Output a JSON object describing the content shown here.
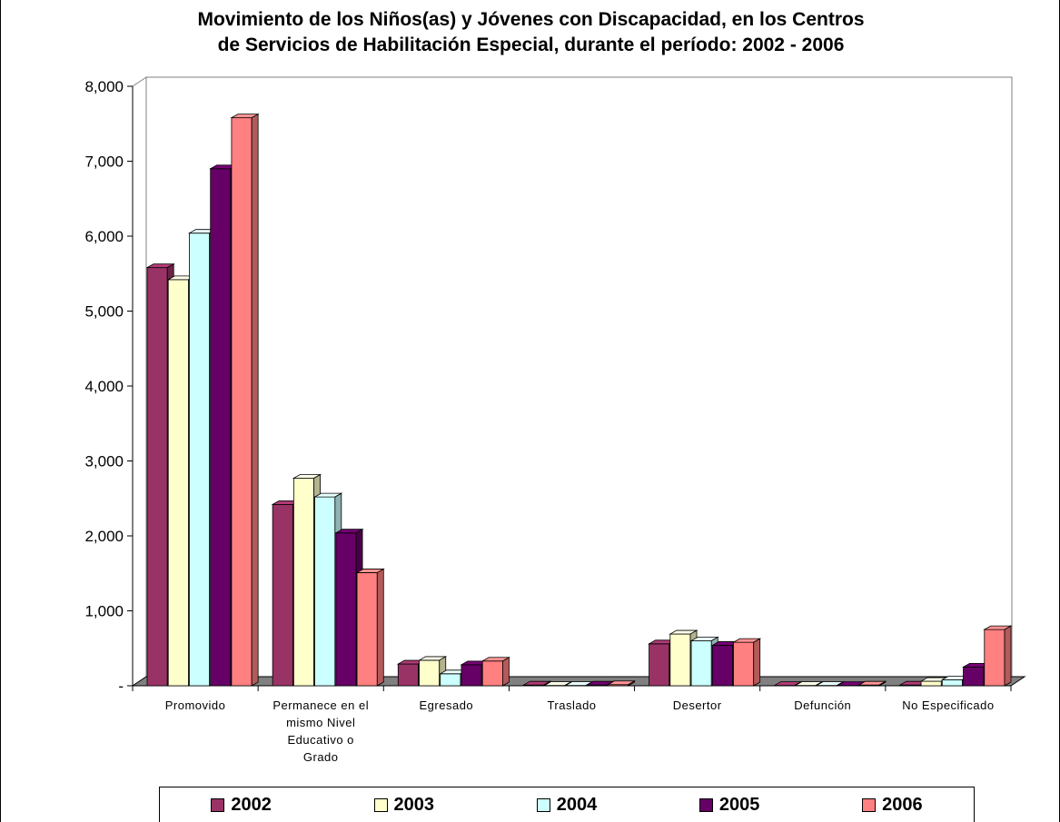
{
  "chart_data": {
    "type": "bar",
    "title_lines": [
      "Movimiento de los Niños(as) y Jóvenes con Discapacidad, en los Centros",
      "de Servicios de Habilitación Especial, durante el período: 2002 - 2006"
    ],
    "xlabel": "",
    "ylabel": "",
    "ylim": [
      0,
      8000
    ],
    "y_ticks": [
      "-",
      "1,000",
      "2,000",
      "3,000",
      "4,000",
      "5,000",
      "6,000",
      "7,000",
      "8,000"
    ],
    "categories": [
      [
        "Promovido"
      ],
      [
        "Permanece en el",
        "mismo Nivel",
        "Educativo o",
        "Grado"
      ],
      [
        "Egresado"
      ],
      [
        "Traslado"
      ],
      [
        "Desertor"
      ],
      [
        "Defunción"
      ],
      [
        "No Especificado"
      ]
    ],
    "series": [
      {
        "name": "2002",
        "color": "#993366",
        "values": [
          5580,
          2420,
          290,
          10,
          560,
          5,
          10
        ]
      },
      {
        "name": "2003",
        "color": "#FFFFCC",
        "values": [
          5420,
          2770,
          340,
          5,
          690,
          5,
          60
        ]
      },
      {
        "name": "2004",
        "color": "#CCFFFF",
        "values": [
          6040,
          2520,
          160,
          5,
          600,
          5,
          80
        ]
      },
      {
        "name": "2005",
        "color": "#660066",
        "values": [
          6900,
          2040,
          280,
          10,
          540,
          5,
          250
        ]
      },
      {
        "name": "2006",
        "color": "#FF8080",
        "values": [
          7580,
          1510,
          330,
          15,
          580,
          10,
          750
        ]
      }
    ],
    "grid": false,
    "legend_position": "bottom"
  }
}
